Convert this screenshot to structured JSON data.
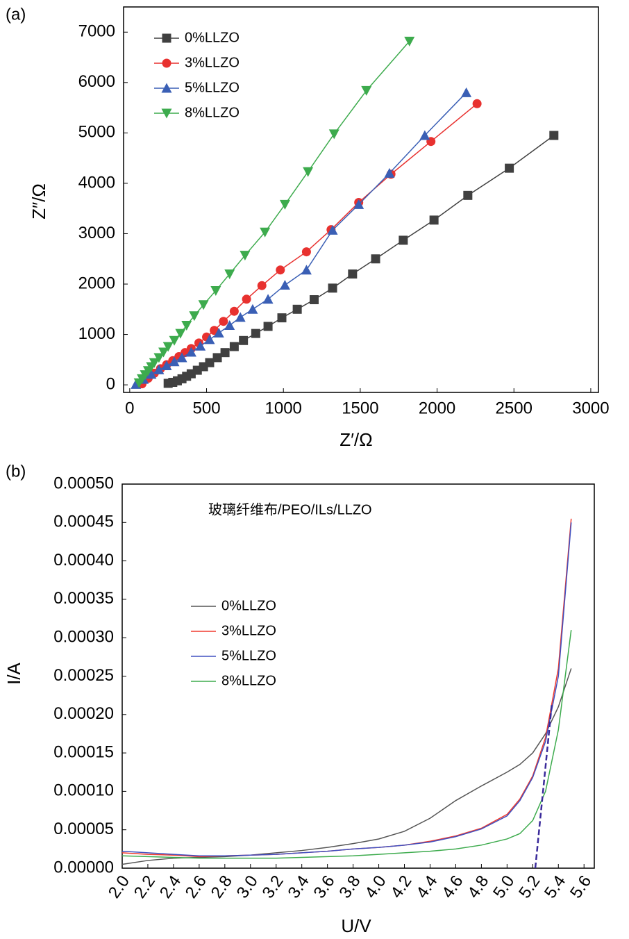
{
  "chart_data": [
    {
      "type": "line",
      "panel_label": "(a)",
      "xlabel": "Z′/Ω",
      "ylabel": "Z″/Ω",
      "xlim": [
        -40,
        3050
      ],
      "ylim": [
        -150,
        7500
      ],
      "xticks": [
        0,
        500,
        1000,
        1500,
        2000,
        2500,
        3000
      ],
      "yticks": [
        0,
        1000,
        2000,
        3000,
        4000,
        5000,
        6000,
        7000
      ],
      "markers": true,
      "legend": "upper left",
      "series": [
        {
          "name": "0%LLZO",
          "color": "#404040",
          "marker": "square",
          "x": [
            250,
            280,
            310,
            340,
            370,
            400,
            440,
            480,
            520,
            570,
            620,
            680,
            740,
            820,
            900,
            990,
            1090,
            1200,
            1320,
            1450,
            1600,
            1780,
            1980,
            2200,
            2470,
            2760
          ],
          "values": [
            30,
            50,
            80,
            120,
            170,
            220,
            290,
            360,
            440,
            540,
            640,
            760,
            880,
            1020,
            1160,
            1330,
            1500,
            1690,
            1920,
            2200,
            2500,
            2870,
            3270,
            3760,
            4300,
            4950
          ]
        },
        {
          "name": "3%LLZO",
          "color": "#e8312f",
          "marker": "circle",
          "x": [
            80,
            120,
            160,
            200,
            240,
            280,
            320,
            360,
            400,
            450,
            500,
            550,
            610,
            680,
            760,
            860,
            980,
            1150,
            1310,
            1490,
            1700,
            1960,
            2260
          ],
          "values": [
            20,
            130,
            230,
            320,
            400,
            480,
            560,
            640,
            720,
            830,
            950,
            1080,
            1260,
            1460,
            1700,
            1970,
            2280,
            2640,
            3080,
            3620,
            4180,
            4830,
            5580
          ]
        },
        {
          "name": "5%LLZO",
          "color": "#3a5fb5",
          "marker": "triangle-up",
          "x": [
            40,
            90,
            140,
            190,
            240,
            290,
            340,
            400,
            460,
            520,
            580,
            650,
            720,
            800,
            900,
            1010,
            1150,
            1320,
            1490,
            1690,
            1920,
            2190
          ],
          "values": [
            10,
            110,
            210,
            300,
            380,
            460,
            540,
            650,
            770,
            900,
            1030,
            1180,
            1340,
            1500,
            1700,
            1980,
            2280,
            3070,
            3580,
            4200,
            4950,
            5800
          ]
        },
        {
          "name": "8%LLZO",
          "color": "#3dab4d",
          "marker": "triangle-down",
          "x": [
            60,
            80,
            100,
            120,
            140,
            160,
            190,
            220,
            250,
            290,
            330,
            370,
            420,
            480,
            560,
            650,
            750,
            880,
            1010,
            1160,
            1330,
            1540,
            1820
          ],
          "values": [
            40,
            120,
            200,
            280,
            360,
            440,
            540,
            650,
            760,
            880,
            1020,
            1180,
            1370,
            1590,
            1870,
            2200,
            2570,
            3030,
            3580,
            4230,
            4980,
            5840,
            6820
          ]
        }
      ]
    },
    {
      "type": "line",
      "panel_label": "(b)",
      "xlabel": "U/V",
      "ylabel": "I/A",
      "annotation": "玻璃纤维布/PEO/ILs/LLZO",
      "xlim": [
        2.0,
        5.68
      ],
      "ylim": [
        0,
        0.0005
      ],
      "xticks": [
        {
          "value": 2,
          "label": "2.0"
        },
        2.2,
        2.4,
        2.6,
        2.8,
        {
          "value": 3,
          "label": "3.0"
        },
        3.2,
        3.4,
        3.6,
        3.8,
        {
          "value": 4,
          "label": "4.0"
        },
        4.2,
        4.4,
        4.6,
        4.8,
        {
          "value": 5,
          "label": "5.0"
        },
        5.2,
        5.4,
        5.6
      ],
      "yticks": [
        {
          "value": 0,
          "label": "0.00000"
        },
        {
          "value": 5e-05,
          "label": "0.00005"
        },
        {
          "value": 0.0001,
          "label": "0.00010"
        },
        {
          "value": 0.00015,
          "label": "0.00015"
        },
        {
          "value": 0.0002,
          "label": "0.00020"
        },
        {
          "value": 0.00025,
          "label": "0.00025"
        },
        {
          "value": 0.0003,
          "label": "0.00030"
        },
        {
          "value": 0.00035,
          "label": "0.00035"
        },
        {
          "value": 0.0004,
          "label": "0.00040"
        },
        {
          "value": 0.00045,
          "label": "0.00045"
        },
        {
          "value": 0.0005,
          "label": "0.00050"
        }
      ],
      "markers": false,
      "legend": "center left",
      "x": [
        2,
        2.2,
        2.4,
        2.6,
        2.8,
        3,
        3.2,
        3.4,
        3.6,
        3.8,
        4,
        4.2,
        4.4,
        4.6,
        4.8,
        5,
        5.1,
        5.2,
        5.3,
        5.4,
        5.5
      ],
      "series": [
        {
          "name": "0%LLZO",
          "color": "#555555",
          "values": [
            5e-06,
            1e-05,
            1.3e-05,
            1.4e-05,
            1.5e-05,
            1.7e-05,
            2e-05,
            2.3e-05,
            2.7e-05,
            3.2e-05,
            3.8e-05,
            4.8e-05,
            6.5e-05,
            8.8e-05,
            0.000107,
            0.000125,
            0.000135,
            0.00015,
            0.000175,
            0.00021,
            0.00026
          ]
        },
        {
          "name": "3%LLZO",
          "color": "#f03a2e",
          "values": [
            2e-05,
            1.8e-05,
            1.7e-05,
            1.5e-05,
            1.6e-05,
            1.7e-05,
            1.8e-05,
            2e-05,
            2.2e-05,
            2.5e-05,
            2.7e-05,
            3e-05,
            3.5e-05,
            4.2e-05,
            5.2e-05,
            7e-05,
            9e-05,
            0.00012,
            0.00017,
            0.00026,
            0.000455
          ]
        },
        {
          "name": "5%LLZO",
          "color": "#4050c0",
          "values": [
            2.2e-05,
            2e-05,
            1.8e-05,
            1.6e-05,
            1.6e-05,
            1.7e-05,
            1.8e-05,
            2e-05,
            2.2e-05,
            2.5e-05,
            2.7e-05,
            3e-05,
            3.4e-05,
            4.1e-05,
            5.1e-05,
            6.8e-05,
            8.8e-05,
            0.000118,
            0.000165,
            0.00025,
            0.00045
          ]
        },
        {
          "name": "8%LLZO",
          "color": "#3dab4d",
          "values": [
            1.6e-05,
            1.5e-05,
            1.4e-05,
            1.3e-05,
            1.3e-05,
            1.3e-05,
            1.3e-05,
            1.4e-05,
            1.5e-05,
            1.6e-05,
            1.8e-05,
            2e-05,
            2.2e-05,
            2.5e-05,
            3e-05,
            3.8e-05,
            4.5e-05,
            6.2e-05,
            0.0001,
            0.00018,
            0.00031
          ]
        }
      ],
      "tangent_line": {
        "color": "#3a2a9a",
        "x": [
          5.22,
          5.35
        ],
        "values": [
          0,
          0.000215
        ]
      }
    }
  ]
}
